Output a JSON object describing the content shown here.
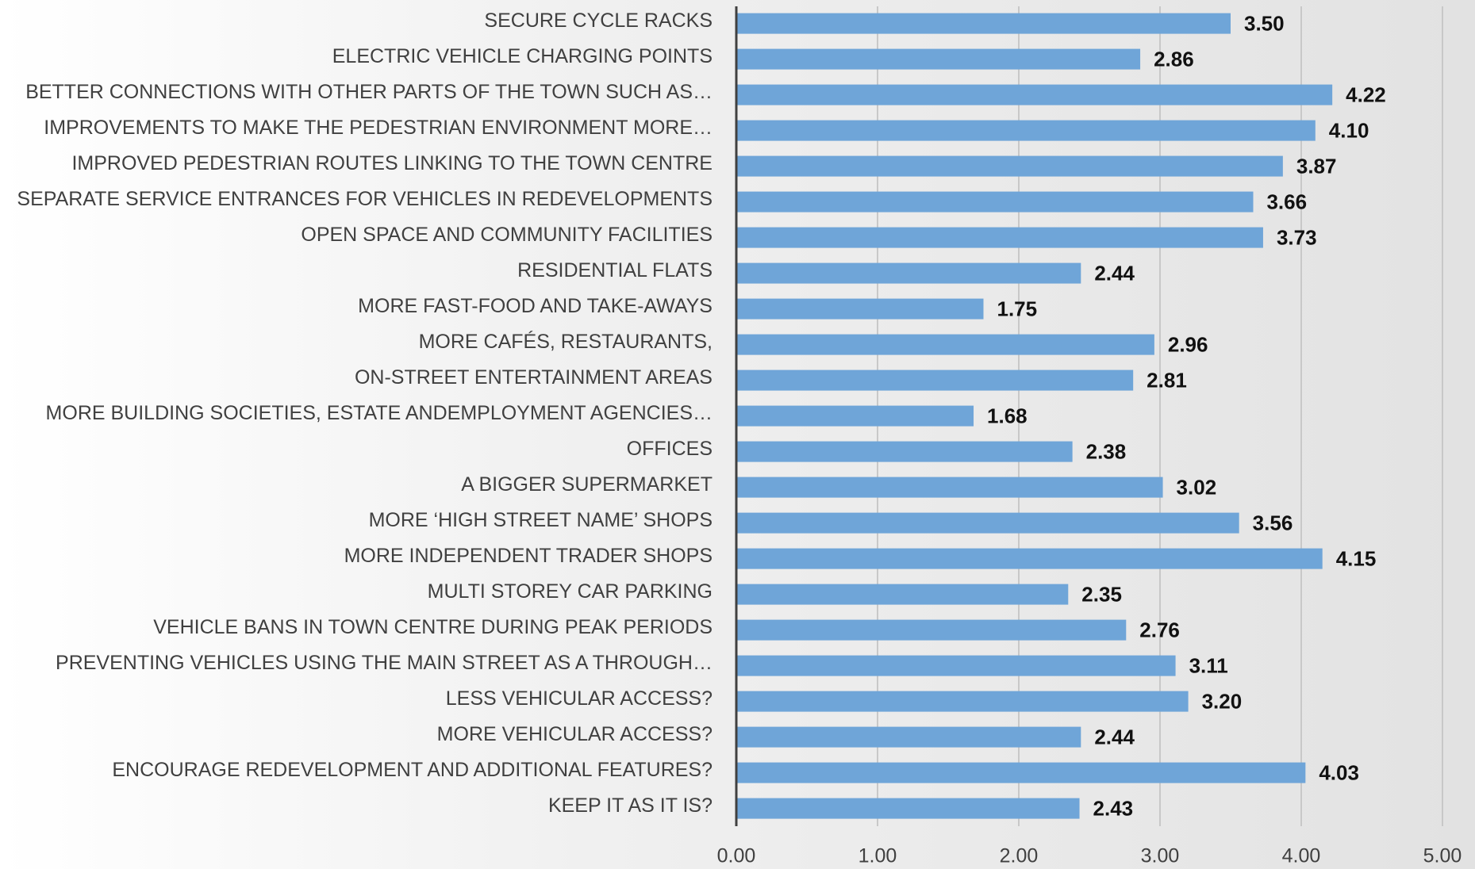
{
  "chart_data": {
    "type": "barh",
    "categories": [
      "SECURE CYCLE RACKS",
      "ELECTRIC VEHICLE CHARGING POINTS",
      "BETTER CONNECTIONS WITH OTHER PARTS OF THE TOWN SUCH AS…",
      "IMPROVEMENTS TO MAKE THE PEDESTRIAN ENVIRONMENT MORE…",
      "IMPROVED PEDESTRIAN ROUTES LINKING TO THE TOWN CENTRE",
      "SEPARATE SERVICE ENTRANCES FOR VEHICLES IN REDEVELOPMENTS",
      "OPEN SPACE AND COMMUNITY FACILITIES",
      "RESIDENTIAL FLATS",
      "MORE FAST-FOOD AND TAKE-AWAYS",
      "MORE CAFÉS, RESTAURANTS,",
      "ON-STREET ENTERTAINMENT AREAS",
      "MORE BUILDING SOCIETIES, ESTATE ANDEMPLOYMENT AGENCIES…",
      "OFFICES",
      "A BIGGER SUPERMARKET",
      "MORE ‘HIGH STREET NAME’ SHOPS",
      "MORE INDEPENDENT TRADER SHOPS",
      "MULTI STOREY CAR PARKING",
      "VEHICLE BANS IN TOWN CENTRE DURING PEAK PERIODS",
      "PREVENTING VEHICLES USING THE MAIN STREET AS A THROUGH…",
      "LESS VEHICULAR ACCESS?",
      "MORE VEHICULAR ACCESS?",
      "ENCOURAGE REDEVELOPMENT AND ADDITIONAL FEATURES?",
      "KEEP IT AS IT IS?"
    ],
    "values": [
      3.5,
      2.86,
      4.22,
      4.1,
      3.87,
      3.66,
      3.73,
      2.44,
      1.75,
      2.96,
      2.81,
      1.68,
      2.38,
      3.02,
      3.56,
      4.15,
      2.35,
      2.76,
      3.11,
      3.2,
      2.44,
      4.03,
      2.43
    ],
    "value_labels": [
      "3.50",
      "2.86",
      "4.22",
      "4.10",
      "3.87",
      "3.66",
      "3.73",
      "2.44",
      "1.75",
      "2.96",
      "2.81",
      "1.68",
      "2.38",
      "3.02",
      "3.56",
      "4.15",
      "2.35",
      "2.76",
      "3.11",
      "3.20",
      "2.44",
      "4.03",
      "2.43"
    ],
    "color": "#6fa5d8",
    "xlim": [
      0,
      5
    ],
    "xticks": [
      {
        "value": 0,
        "label": "0.00"
      },
      {
        "value": 1,
        "label": "1.00"
      },
      {
        "value": 2,
        "label": "2.00"
      },
      {
        "value": 3,
        "label": "3.00"
      },
      {
        "value": 4,
        "label": "4.00"
      },
      {
        "value": 5,
        "label": "5.00"
      }
    ],
    "grid": true
  }
}
